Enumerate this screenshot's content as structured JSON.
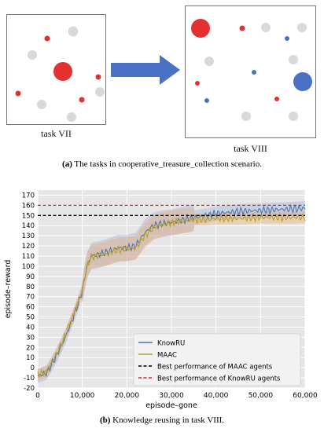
{
  "scenario": {
    "task_a_label": "task VII",
    "task_b_label": "task VIII",
    "caption_tag": "(a)",
    "caption_text": "The tasks in cooperative_treasure_collection scenario.",
    "colors": {
      "red": "#e53030",
      "blue": "#4a72c4",
      "gray": "#d9d9d9",
      "arrow": "#4a72c4"
    }
  },
  "figure_b": {
    "caption_tag": "(b)",
    "caption_text": "Knowledge reusing in task VIII."
  },
  "chart_data": {
    "type": "line",
    "xlabel": "episode–gone",
    "ylabel": "episode–reward",
    "xlim": [
      0,
      60000
    ],
    "ylim": [
      -20,
      175
    ],
    "xticks": [
      0,
      10000,
      20000,
      30000,
      40000,
      50000,
      60000
    ],
    "xtick_labels": [
      "0",
      "10,000",
      "20,000",
      "30,000",
      "40,000",
      "50,000",
      "60,000"
    ],
    "yticks": [
      -20,
      -10,
      0,
      10,
      20,
      30,
      40,
      50,
      60,
      70,
      80,
      90,
      100,
      110,
      120,
      130,
      140,
      150,
      160,
      170
    ],
    "grid": true,
    "background": "#e6e6e6",
    "legend_position": "lower-right",
    "series": [
      {
        "name": "KnowRU",
        "color": "#4c72b0",
        "style": "solid",
        "x": [
          0,
          2000,
          4000,
          6000,
          8000,
          10000,
          11000,
          12000,
          15000,
          18000,
          20000,
          22000,
          24000,
          26000,
          28000,
          30000,
          32000,
          35000,
          38000,
          40000,
          45000,
          50000,
          55000,
          60000
        ],
        "values": [
          -8,
          -5,
          10,
          28,
          50,
          75,
          100,
          110,
          113,
          118,
          118,
          120,
          133,
          140,
          142,
          143,
          145,
          148,
          150,
          152,
          154,
          155,
          156,
          157
        ]
      },
      {
        "name": "MAAC",
        "color": "#b8a020",
        "style": "solid",
        "x": [
          0,
          2000,
          4000,
          6000,
          8000,
          10000,
          11000,
          12000,
          15000,
          18000,
          20000,
          22000,
          24000,
          26000,
          28000,
          30000,
          32000,
          35000,
          38000,
          40000,
          45000,
          50000,
          55000,
          60000
        ],
        "values": [
          -7,
          -4,
          12,
          30,
          52,
          76,
          100,
          109,
          112,
          116,
          117,
          118,
          130,
          138,
          141,
          143,
          144,
          146,
          146,
          147,
          147,
          148,
          148,
          148
        ]
      },
      {
        "name": "Best performance of MAAC agents",
        "color": "#000000",
        "style": "dashed",
        "constant": 150
      },
      {
        "name": "Best performance of KnowRU agents",
        "color": "#d62728",
        "style": "dashed",
        "constant": 160
      }
    ]
  }
}
